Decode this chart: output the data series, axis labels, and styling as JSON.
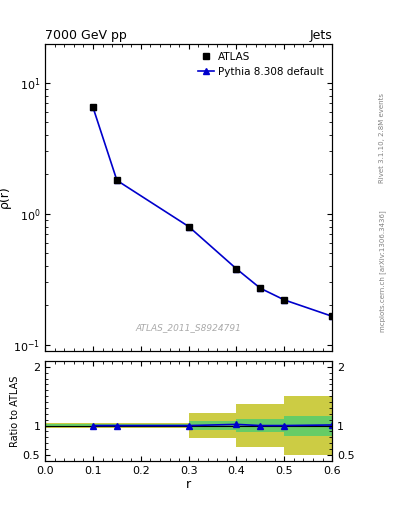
{
  "title_left": "7000 GeV pp",
  "title_right": "Jets",
  "ylabel_main": "ρ(r)",
  "ylabel_ratio": "Ratio to ATLAS",
  "xlabel": "r",
  "right_label_top": "Rivet 3.1.10, 2.8M events",
  "right_label_bot": "mcplots.cern.ch [arXiv:1306.3436]",
  "watermark": "ATLAS_2011_S8924791",
  "x_data": [
    0.1,
    0.15,
    0.3,
    0.4,
    0.45,
    0.5,
    0.6
  ],
  "atlas_y": [
    6.5,
    1.8,
    0.8,
    0.38,
    0.27,
    0.22,
    0.165
  ],
  "pythia_y": [
    6.5,
    1.8,
    0.8,
    0.38,
    0.27,
    0.22,
    0.165
  ],
  "ratio_x": [
    0.1,
    0.15,
    0.3,
    0.4,
    0.45,
    0.5,
    0.6
  ],
  "ratio_y": [
    1.0,
    1.0,
    1.0,
    1.02,
    1.0,
    1.0,
    1.01
  ],
  "band_x_edges": [
    0.0,
    0.1,
    0.3,
    0.4,
    0.5,
    0.6
  ],
  "green_upper": [
    1.03,
    1.03,
    1.07,
    1.11,
    1.17,
    1.17
  ],
  "green_lower": [
    0.97,
    0.97,
    0.93,
    0.89,
    0.83,
    0.83
  ],
  "yellow_upper": [
    1.05,
    1.05,
    1.22,
    1.37,
    1.5,
    1.5
  ],
  "yellow_lower": [
    0.95,
    0.95,
    0.78,
    0.63,
    0.5,
    0.5
  ],
  "xlim": [
    0.0,
    0.6
  ],
  "ylim_main": [
    0.09,
    20
  ],
  "ylim_ratio": [
    0.4,
    2.1
  ],
  "atlas_color": "#000000",
  "pythia_color": "#0000cc",
  "green_color": "#66cc66",
  "yellow_color": "#cccc44",
  "atlas_marker": "s",
  "pythia_marker": "^",
  "atlas_markersize": 5,
  "pythia_markersize": 5,
  "line_width": 1.2,
  "ratio_yticks": [
    0.5,
    1.0,
    2.0
  ],
  "ratio_ytick_labels": [
    "0.5",
    "1",
    "2"
  ]
}
